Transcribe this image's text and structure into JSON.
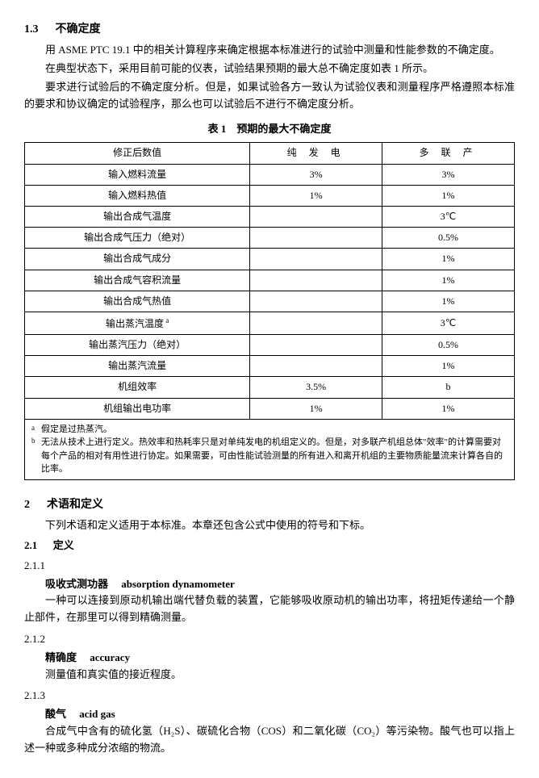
{
  "s13": {
    "num": "1.3",
    "title": "不确定度",
    "p1": "用 ASME PTC 19.1 中的相关计算程序来确定根据本标准进行的试验中测量和性能参数的不确定度。",
    "p2": "在典型状态下，采用目前可能的仪表，试验结果预期的最大总不确定度如表 1 所示。",
    "p3": "要求进行试验后的不确定度分析。但是，如果试验各方一致认为试验仪表和测量程序严格遵照本标准的要求和协议确定的试验程序，那么也可以试验后不进行不确定度分析。"
  },
  "table1": {
    "caption": "表 1　预期的最大不确定度",
    "header": {
      "col1": "修正后数值",
      "col2": "纯 发 电",
      "col3": "多 联 产"
    },
    "rows": [
      {
        "label": "输入燃料流量",
        "v1": "3%",
        "v2": "3%",
        "sup": ""
      },
      {
        "label": "输入燃料热值",
        "v1": "1%",
        "v2": "1%",
        "sup": ""
      },
      {
        "label": "输出合成气温度",
        "v1": "",
        "v2": "3℃",
        "sup": ""
      },
      {
        "label": "输出合成气压力（绝对）",
        "v1": "",
        "v2": "0.5%",
        "sup": ""
      },
      {
        "label": "输出合成气成分",
        "v1": "",
        "v2": "1%",
        "sup": ""
      },
      {
        "label": "输出合成气容积流量",
        "v1": "",
        "v2": "1%",
        "sup": ""
      },
      {
        "label": "输出合成气热值",
        "v1": "",
        "v2": "1%",
        "sup": ""
      },
      {
        "label": "输出蒸汽温度",
        "v1": "",
        "v2": "3℃",
        "sup": "a"
      },
      {
        "label": "输出蒸汽压力（绝对）",
        "v1": "",
        "v2": "0.5%",
        "sup": ""
      },
      {
        "label": "输出蒸汽流量",
        "v1": "",
        "v2": "1%",
        "sup": ""
      },
      {
        "label": "机组效率",
        "v1": "3.5%",
        "v2": "b",
        "sup": ""
      },
      {
        "label": "机组输出电功率",
        "v1": "1%",
        "v2": "1%",
        "sup": ""
      }
    ],
    "fn_a_mark": "a",
    "fn_a_text": "假定是过热蒸汽。",
    "fn_b_mark": "b",
    "fn_b_text": "无法从技术上进行定义。热效率和热耗率只是对单纯发电的机组定义的。但是，对多联产机组总体\"效率\"的计算需要对每个产品的相对有用性进行协定。如果需要，可由性能试验测量的所有进入和离开机组的主要物质能量流来计算各自的比率。"
  },
  "s2": {
    "num": "2",
    "title": "术语和定义",
    "intro": "下列术语和定义适用于本标准。本章还包含公式中使用的符号和下标。"
  },
  "s21": {
    "num": "2.1",
    "title": "定义"
  },
  "t211": {
    "num": "2.1.1",
    "zh": "吸收式测功器",
    "en": "absorption dynamometer",
    "def": "一种可以连接到原动机输出端代替负载的装置，它能够吸收原动机的输出功率，将扭矩传递给一个静止部件，在那里可以得到精确测量。"
  },
  "t212": {
    "num": "2.1.2",
    "zh": "精确度",
    "en": "accuracy",
    "def": "测量值和真实值的接近程度。"
  },
  "t213": {
    "num": "2.1.3",
    "zh": "酸气",
    "en": "acid gas",
    "def": "合成气中含有的硫化氢（H₂S）、碳硫化合物（COS）和二氧化碳（CO₂）等污染物。酸气也可以指上述一种或多种成分浓缩的物流。"
  }
}
